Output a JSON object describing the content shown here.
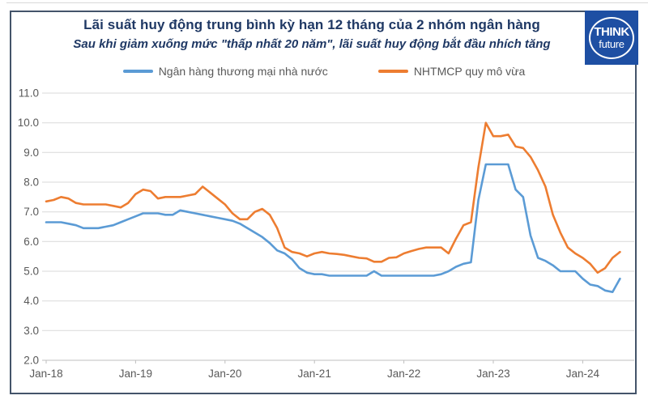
{
  "header": {
    "title": "Lãi suất huy động trung bình kỳ hạn 12 tháng của 2 nhóm ngân hàng",
    "subtitle": "Sau khi giảm xuống mức \"thấp nhất 20 năm\", lãi suất huy động bắt đầu nhích tăng"
  },
  "logo": {
    "line1": "THINK",
    "line2": "future",
    "bg_color": "#1e4fa3"
  },
  "legend": [
    {
      "label": "Ngân hàng thương mại nhà nước",
      "color": "#5b9bd5"
    },
    {
      "label": "NHTMCP quy mô vừa",
      "color": "#ed7d31"
    }
  ],
  "colors": {
    "title": "#1f3864",
    "frame_border": "#44546a",
    "gridline": "#d9d9d9",
    "axis_line": "#bfbfbf",
    "axis_text": "#595959",
    "series_blue": "#5b9bd5",
    "series_orange": "#ed7d31"
  },
  "chart_data": {
    "type": "line",
    "title": "Lãi suất huy động trung bình kỳ hạn 12 tháng của 2 nhóm ngân hàng",
    "xlabel": "",
    "ylabel": "",
    "ylim": [
      2.0,
      11.0
    ],
    "y_tick_step": 1.0,
    "y_tick_labels": [
      "2.0",
      "3.0",
      "4.0",
      "5.0",
      "6.0",
      "7.0",
      "8.0",
      "9.0",
      "10.0",
      "11.0"
    ],
    "x_tick_labels": [
      "Jan-18",
      "Jan-19",
      "Jan-20",
      "Jan-21",
      "Jan-22",
      "Jan-23",
      "Jan-24"
    ],
    "x_tick_every_n_points": 12,
    "x_start_month": "Jan-18",
    "x_end_month": "Jun-24",
    "grid": "horizontal",
    "legend_position": "top-center",
    "series": [
      {
        "name": "Ngân hàng thương mại nhà nước",
        "color": "#5b9bd5",
        "values": [
          6.65,
          6.65,
          6.65,
          6.6,
          6.55,
          6.45,
          6.45,
          6.45,
          6.5,
          6.55,
          6.65,
          6.75,
          6.85,
          6.95,
          6.95,
          6.95,
          6.9,
          6.9,
          7.05,
          7.0,
          6.95,
          6.9,
          6.85,
          6.8,
          6.75,
          6.7,
          6.6,
          6.45,
          6.3,
          6.15,
          5.95,
          5.7,
          5.6,
          5.4,
          5.1,
          4.95,
          4.9,
          4.9,
          4.85,
          4.85,
          4.85,
          4.85,
          4.85,
          4.85,
          5.0,
          4.85,
          4.85,
          4.85,
          4.85,
          4.85,
          4.85,
          4.85,
          4.85,
          4.9,
          5.0,
          5.15,
          5.25,
          5.3,
          7.4,
          8.6,
          8.6,
          8.6,
          8.6,
          7.75,
          7.5,
          6.2,
          5.45,
          5.35,
          5.2,
          5.0,
          5.0,
          5.0,
          4.75,
          4.55,
          4.5,
          4.35,
          4.3,
          4.75
        ]
      },
      {
        "name": "NHTMCP quy mô vừa",
        "color": "#ed7d31",
        "values": [
          7.35,
          7.4,
          7.5,
          7.45,
          7.3,
          7.25,
          7.25,
          7.25,
          7.25,
          7.2,
          7.15,
          7.3,
          7.6,
          7.75,
          7.7,
          7.45,
          7.5,
          7.5,
          7.5,
          7.55,
          7.6,
          7.85,
          7.65,
          7.45,
          7.25,
          6.95,
          6.75,
          6.75,
          7.0,
          7.1,
          6.9,
          6.45,
          5.8,
          5.65,
          5.6,
          5.5,
          5.6,
          5.65,
          5.6,
          5.58,
          5.55,
          5.5,
          5.45,
          5.43,
          5.32,
          5.32,
          5.45,
          5.47,
          5.6,
          5.68,
          5.75,
          5.8,
          5.8,
          5.8,
          5.6,
          6.1,
          6.55,
          6.65,
          8.5,
          10.0,
          9.55,
          9.55,
          9.6,
          9.2,
          9.15,
          8.85,
          8.4,
          7.85,
          6.9,
          6.3,
          5.8,
          5.6,
          5.45,
          5.25,
          4.95,
          5.1,
          5.45,
          5.65
        ]
      }
    ]
  }
}
